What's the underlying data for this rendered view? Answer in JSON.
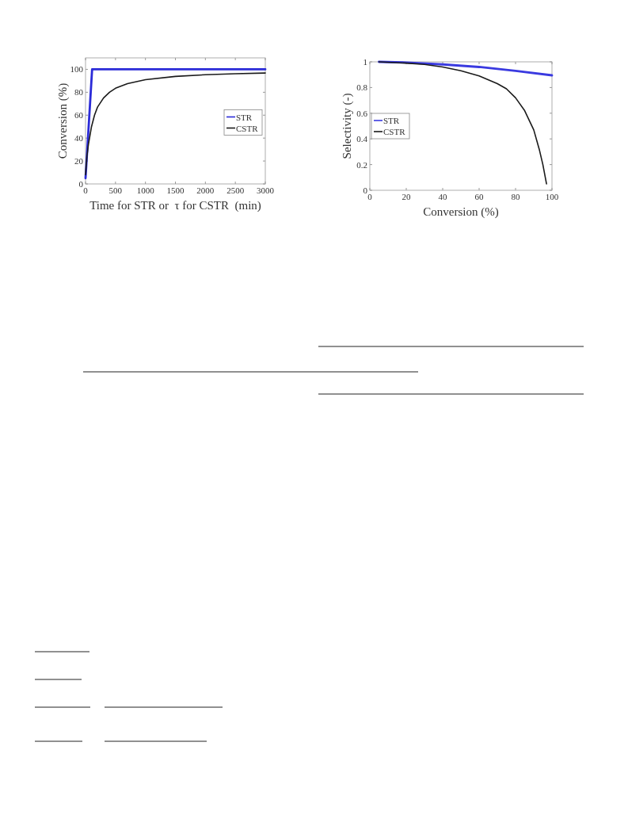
{
  "chart_data": [
    {
      "type": "line",
      "xlabel": "Time for STR or  τ for CSTR  (min)",
      "ylabel": "Conversion (%)",
      "xlim": [
        0,
        3000
      ],
      "ylim": [
        0,
        110
      ],
      "xticks": [
        0,
        500,
        1000,
        1500,
        2000,
        2500,
        3000
      ],
      "yticks": [
        0,
        20,
        40,
        60,
        80,
        100
      ],
      "grid": false,
      "legend": "right",
      "series": [
        {
          "name": "STR",
          "color": "#2b2bd8",
          "x": [
            0,
            110,
            3000
          ],
          "values": [
            5,
            100,
            100
          ]
        },
        {
          "name": "CSTR",
          "color": "#1a1a1a",
          "x": [
            0,
            25,
            50,
            100,
            150,
            200,
            300,
            400,
            500,
            700,
            1000,
            1500,
            2000,
            2500,
            3000
          ],
          "values": [
            8,
            25,
            35,
            50,
            60,
            67,
            75,
            80,
            83.5,
            87.5,
            91,
            93.8,
            95.3,
            96.2,
            96.8
          ]
        }
      ]
    },
    {
      "type": "line",
      "xlabel": "Conversion (%)",
      "ylabel": "Selectivity (-)",
      "xlim": [
        0,
        100
      ],
      "ylim": [
        0,
        1
      ],
      "xticks": [
        0,
        20,
        40,
        60,
        80,
        100
      ],
      "yticks": [
        0,
        0.2,
        0.4,
        0.6,
        0.8,
        1
      ],
      "grid": false,
      "legend": "left",
      "series": [
        {
          "name": "STR",
          "color": "#3a3ae0",
          "x": [
            5,
            20,
            40,
            60,
            80,
            100
          ],
          "values": [
            1,
            0.995,
            0.98,
            0.96,
            0.93,
            0.895
          ]
        },
        {
          "name": "CSTR",
          "color": "#1a1a1a",
          "x": [
            5,
            20,
            30,
            40,
            50,
            60,
            70,
            75,
            80,
            85,
            90,
            93,
            95,
            97
          ],
          "values": [
            1,
            0.99,
            0.98,
            0.96,
            0.93,
            0.89,
            0.83,
            0.79,
            0.72,
            0.62,
            0.47,
            0.32,
            0.2,
            0.05
          ]
        }
      ]
    }
  ]
}
